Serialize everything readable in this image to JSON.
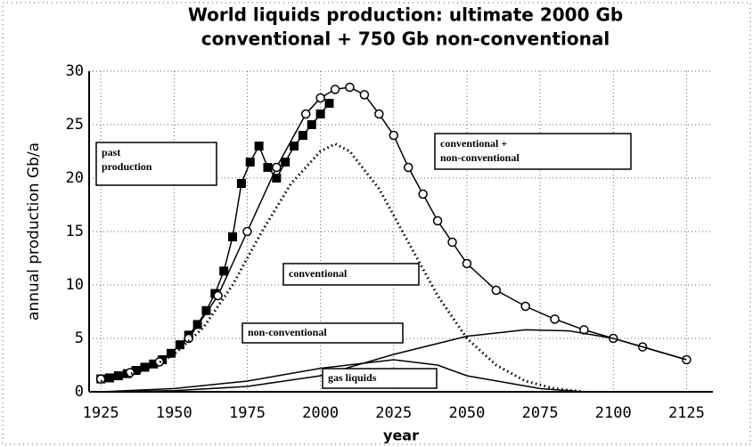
{
  "chart_data": {
    "type": "line",
    "title": [
      "World liquids production: ultimate 2000 Gb",
      "conventional + 750 Gb non-conventional"
    ],
    "xlabel": "year",
    "ylabel": "annual production  Gb/a",
    "xlim": [
      1921,
      2134
    ],
    "ylim": [
      0,
      30
    ],
    "xticks": [
      1925,
      1950,
      1975,
      2000,
      2025,
      2050,
      2075,
      2100,
      2125
    ],
    "yticks": [
      0,
      5,
      10,
      15,
      20,
      25,
      30
    ],
    "grid": true,
    "series": [
      {
        "name": "past production",
        "color": "#000000",
        "marker": "square",
        "x": [
          1925,
          1928,
          1931,
          1934,
          1937,
          1940,
          1943,
          1946,
          1949,
          1952,
          1955,
          1958,
          1961,
          1964,
          1967,
          1970,
          1973,
          1976,
          1979,
          1982,
          1985,
          1988,
          1991,
          1994,
          1997,
          2000,
          2003
        ],
        "values": [
          1.2,
          1.3,
          1.5,
          1.7,
          2.0,
          2.3,
          2.6,
          3.0,
          3.6,
          4.4,
          5.3,
          6.3,
          7.6,
          9.2,
          11.3,
          14.5,
          19.5,
          21.5,
          23.0,
          21.0,
          20.0,
          21.5,
          23.0,
          24.0,
          25.0,
          26.0,
          27.0
        ]
      },
      {
        "name": "conventional + non-conventional",
        "color": "#000000",
        "marker": "circle",
        "x": [
          1925,
          1935,
          1945,
          1955,
          1965,
          1975,
          1985,
          1995,
          2000,
          2005,
          2010,
          2015,
          2020,
          2025,
          2030,
          2035,
          2040,
          2045,
          2050,
          2060,
          2070,
          2080,
          2090,
          2100,
          2110,
          2125
        ],
        "values": [
          1.2,
          1.8,
          2.8,
          5.0,
          9.0,
          15.0,
          21.0,
          26.0,
          27.5,
          28.3,
          28.5,
          27.8,
          26.0,
          24.0,
          21.0,
          18.5,
          16.0,
          14.0,
          12.0,
          9.5,
          8.0,
          6.8,
          5.8,
          5.0,
          4.2,
          3.0
        ]
      },
      {
        "name": "conventional",
        "color": "#000000",
        "marker": "dots",
        "x": [
          1925,
          1940,
          1950,
          1960,
          1970,
          1980,
          1990,
          2000,
          2005,
          2010,
          2020,
          2030,
          2040,
          2050,
          2060,
          2070,
          2080,
          2090
        ],
        "values": [
          1.0,
          2.0,
          3.5,
          6.0,
          10.0,
          15.0,
          19.5,
          22.5,
          23.2,
          22.5,
          19.0,
          14.0,
          9.0,
          5.0,
          2.5,
          1.0,
          0.3,
          0.0
        ]
      },
      {
        "name": "non-conventional",
        "color": "#000000",
        "marker": "none",
        "x": [
          1925,
          1950,
          1975,
          2000,
          2025,
          2050,
          2070,
          2085,
          2100,
          2125
        ],
        "values": [
          0.0,
          0.1,
          0.5,
          1.5,
          3.5,
          5.2,
          5.8,
          5.7,
          5.0,
          3.0
        ]
      },
      {
        "name": "gas liquids",
        "color": "#000000",
        "marker": "none",
        "x": [
          1925,
          1950,
          1975,
          2000,
          2025,
          2040,
          2050,
          2075,
          2090
        ],
        "values": [
          0.0,
          0.3,
          1.0,
          2.2,
          3.0,
          2.5,
          1.5,
          0.3,
          0.0
        ]
      }
    ]
  }
}
